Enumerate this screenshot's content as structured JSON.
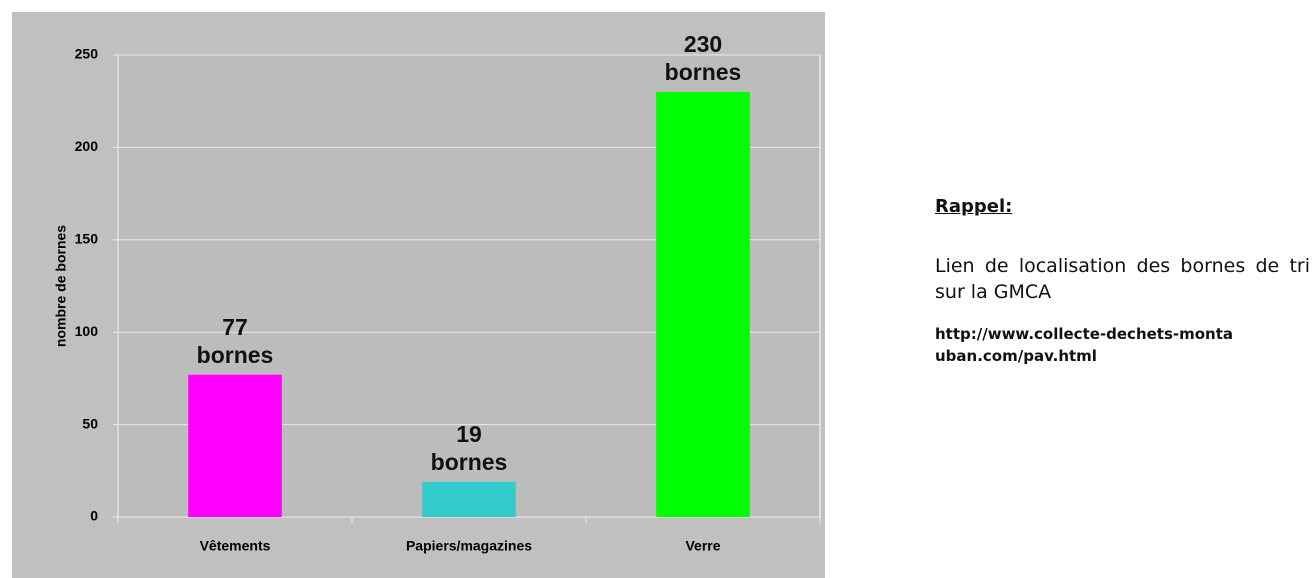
{
  "chart_data": {
    "type": "bar",
    "ylabel": "nombre de bornes",
    "categories": [
      "Vêtements",
      "Papiers/magazines",
      "Verre"
    ],
    "values": [
      77,
      19,
      230
    ],
    "value_labels": [
      "77 bornes",
      "19 bornes",
      "230 bornes"
    ],
    "colors": [
      "#ff00ff",
      "#33cccc",
      "#00ff00"
    ],
    "ylim": [
      0,
      250
    ],
    "yticks": [
      0,
      50,
      100,
      150,
      200,
      250
    ],
    "grid": true
  },
  "note": {
    "title": "Rappel:",
    "text": "Lien de localisation des bornes de tri sur la GMCA",
    "link": "http://www.collecte-dechets-montauban.com/pav.html"
  }
}
